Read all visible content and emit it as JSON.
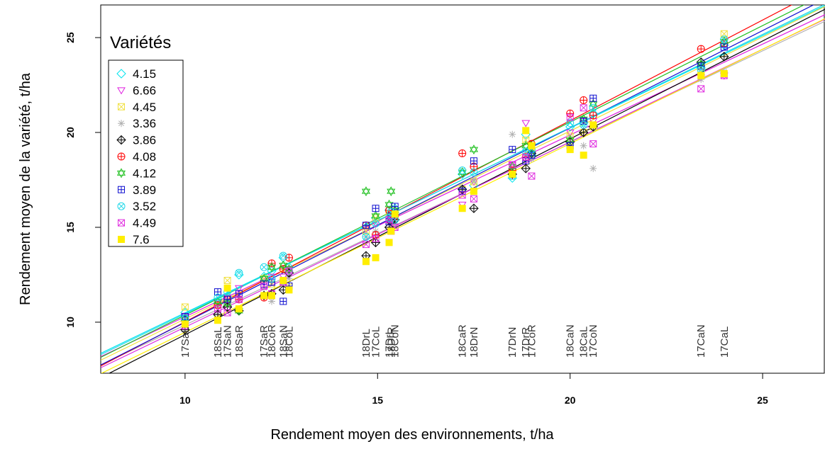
{
  "chart_data": {
    "type": "scatter",
    "x_label": "Rendement moyen des environnements, t/ha",
    "y_label": "Rendement moyen de la variété, t/ha",
    "legend_title": "Variétés",
    "legend": "top-left",
    "xlim": [
      7.81,
      26.62
    ],
    "ylim": [
      7.31,
      26.72
    ],
    "xticks": [
      10,
      15,
      20,
      25
    ],
    "yticks": [
      10,
      15,
      20,
      25
    ],
    "x_labels": [
      "17SaL",
      "18SaL",
      "17SaN",
      "18SaR",
      "17SaR",
      "18CoR",
      "18SaN",
      "18CoL",
      "18DrL",
      "17CoL",
      "17DrL",
      "18DrR",
      "18CoN",
      "18CaR",
      "18DrN",
      "17DrN",
      "17DrR",
      "17CoR",
      "18CaN",
      "18CaL",
      "17CoN",
      "17CaN",
      "17CaL"
    ],
    "x": [
      10.0,
      10.85,
      11.1,
      11.4,
      12.05,
      12.25,
      12.55,
      12.7,
      14.7,
      14.95,
      15.3,
      15.35,
      15.45,
      17.2,
      17.5,
      18.5,
      18.85,
      19.0,
      20.0,
      20.35,
      20.6,
      23.4,
      24.0
    ],
    "series": [
      {
        "name": "4.15",
        "color": "#00e5ee",
        "marker": "diamond",
        "values": [
          10.5,
          11.0,
          11.3,
          12.5,
          12.4,
          12.7,
          13.4,
          12.9,
          15.0,
          15.5,
          15.9,
          15.6,
          16.0,
          17.8,
          17.2,
          17.6,
          19.9,
          18.8,
          20.3,
          20.5,
          21.0,
          23.4,
          24.6
        ]
      },
      {
        "name": "6.66",
        "color": "#e020e0",
        "marker": "tri-down",
        "values": [
          10.3,
          11.0,
          11.3,
          11.8,
          12.2,
          12.4,
          12.4,
          12.8,
          14.9,
          15.2,
          15.3,
          15.4,
          15.5,
          16.2,
          17.4,
          18.3,
          20.5,
          18.8,
          20.0,
          20.6,
          20.6,
          22.9,
          23.0
        ]
      },
      {
        "name": "4.45",
        "color": "#f0e040",
        "marker": "square-cross",
        "values": [
          10.8,
          10.9,
          12.2,
          11.2,
          12.3,
          12.0,
          12.8,
          11.9,
          14.8,
          15.5,
          15.7,
          15.3,
          15.6,
          17.0,
          17.4,
          18.0,
          19.6,
          19.2,
          19.8,
          20.0,
          20.3,
          23.2,
          25.2
        ]
      },
      {
        "name": "3.36",
        "color": "#b0b0b0",
        "marker": "asterisk",
        "values": [
          10.0,
          10.5,
          11.0,
          11.2,
          11.8,
          11.1,
          12.0,
          12.3,
          14.5,
          14.8,
          15.2,
          15.0,
          15.2,
          17.1,
          17.5,
          19.9,
          18.8,
          18.6,
          19.7,
          19.3,
          18.1,
          22.8,
          23.2
        ]
      },
      {
        "name": "3.86",
        "color": "#000000",
        "marker": "diamond-plus",
        "values": [
          9.6,
          10.4,
          10.8,
          10.6,
          11.4,
          11.5,
          11.7,
          12.6,
          13.5,
          14.2,
          15.0,
          15.3,
          15.4,
          17.0,
          16.0,
          17.8,
          18.1,
          18.9,
          19.5,
          20.0,
          20.3,
          23.7,
          24.0
        ]
      },
      {
        "name": "4.08",
        "color": "#ff0000",
        "marker": "circle-plus",
        "values": [
          10.1,
          10.9,
          11.2,
          11.2,
          11.3,
          13.1,
          12.8,
          13.4,
          15.1,
          14.6,
          15.9,
          15.7,
          15.6,
          18.9,
          18.2,
          18.0,
          18.7,
          19.4,
          21.0,
          21.7,
          20.9,
          24.4,
          24.7
        ]
      },
      {
        "name": "4.12",
        "color": "#20c020",
        "marker": "hexagram",
        "values": [
          10.2,
          11.1,
          11.0,
          10.6,
          12.3,
          12.9,
          13.0,
          12.8,
          16.9,
          15.6,
          16.2,
          16.9,
          15.9,
          17.9,
          19.1,
          18.2,
          19.3,
          18.9,
          19.6,
          20.7,
          21.5,
          23.6,
          24.8
        ]
      },
      {
        "name": "3.89",
        "color": "#1010d0",
        "marker": "square-plus",
        "values": [
          10.3,
          11.6,
          11.2,
          11.5,
          12.0,
          12.1,
          11.1,
          11.9,
          15.1,
          16.0,
          15.3,
          15.6,
          16.1,
          16.9,
          18.5,
          19.1,
          18.5,
          18.8,
          19.3,
          20.6,
          21.8,
          23.5,
          24.5
        ]
      },
      {
        "name": "3.52",
        "color": "#20d8e8",
        "marker": "circle-cross",
        "values": [
          10.2,
          11.3,
          11.6,
          12.6,
          12.9,
          12.3,
          13.5,
          12.7,
          14.5,
          15.2,
          15.5,
          15.8,
          15.4,
          18.0,
          17.9,
          17.7,
          19.0,
          19.1,
          20.5,
          20.4,
          21.3,
          23.3,
          24.9
        ]
      },
      {
        "name": "4.49",
        "color": "#e030e0",
        "marker": "square-x",
        "values": [
          9.8,
          10.7,
          10.5,
          11.2,
          11.9,
          11.5,
          12.1,
          12.7,
          14.1,
          14.4,
          15.4,
          14.8,
          15.0,
          16.7,
          16.5,
          18.3,
          18.7,
          17.7,
          20.8,
          21.3,
          19.4,
          22.3,
          23.0
        ]
      },
      {
        "name": "7.6",
        "color": "#ffee00",
        "marker": "square-filled",
        "values": [
          9.9,
          10.1,
          11.8,
          10.7,
          11.4,
          11.4,
          12.2,
          11.7,
          13.2,
          13.4,
          14.2,
          14.8,
          15.7,
          16.0,
          16.9,
          17.8,
          20.1,
          19.3,
          19.1,
          18.8,
          20.4,
          23.0,
          23.1
        ]
      }
    ]
  }
}
